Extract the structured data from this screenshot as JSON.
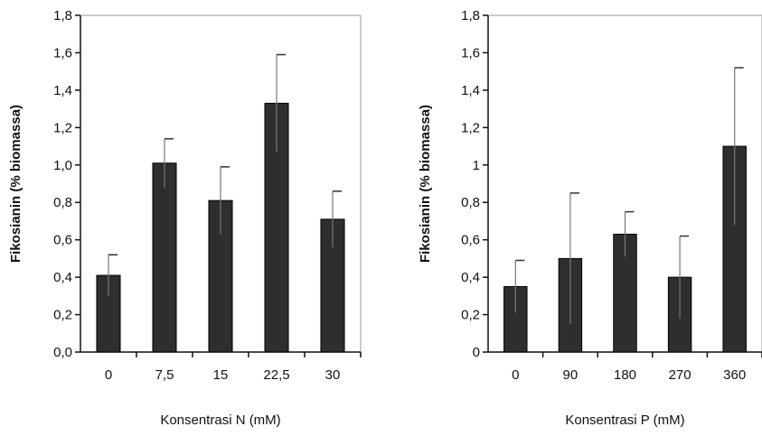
{
  "chart_data": [
    {
      "type": "bar",
      "xlabel": "Konsentrasi N (mM)",
      "ylabel": "Fikosianin (% biomassa)",
      "categories": [
        "0",
        "7,5",
        "15",
        "22,5",
        "30"
      ],
      "values": [
        0.41,
        1.01,
        0.81,
        1.33,
        0.71
      ],
      "errors": [
        0.11,
        0.13,
        0.18,
        0.26,
        0.15
      ],
      "ylim": [
        0,
        1.8
      ],
      "yticks": [
        0,
        0.2,
        0.4,
        0.6,
        0.8,
        1.0,
        1.2,
        1.4,
        1.6,
        1.8
      ],
      "ytick_labels": [
        "0,0",
        "0,2",
        "0,4",
        "0,6",
        "0,8",
        "1,0",
        "1,2",
        "1,4",
        "1,6",
        "1,8"
      ],
      "grid": false,
      "bar_color": "#2e2e2e"
    },
    {
      "type": "bar",
      "xlabel": "Konsentrasi P (mM)",
      "ylabel": "Fikosianin (% biomassa)",
      "categories": [
        "0",
        "90",
        "180",
        "270",
        "360"
      ],
      "values": [
        0.35,
        0.5,
        0.63,
        0.4,
        1.1
      ],
      "errors": [
        0.14,
        0.35,
        0.12,
        0.22,
        0.42
      ],
      "ylim": [
        0,
        1.8
      ],
      "yticks": [
        0,
        0.2,
        0.4,
        0.6,
        0.8,
        1.0,
        1.2,
        1.4,
        1.6,
        1.8
      ],
      "ytick_labels": [
        "0",
        "0,2",
        "0,4",
        "0,6",
        "0,8",
        "1",
        "1,2",
        "1,4",
        "1,6",
        "1,8"
      ],
      "grid": false,
      "bar_color": "#2e2e2e"
    }
  ]
}
